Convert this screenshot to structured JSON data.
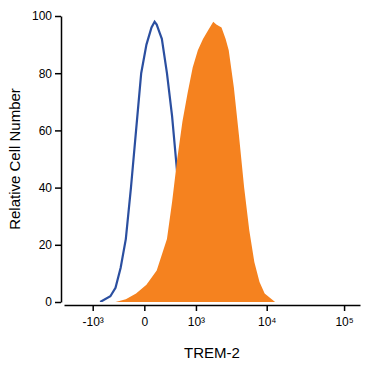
{
  "chart_data": {
    "type": "line",
    "x_label": "TREM-2",
    "y_label": "Relative Cell Number",
    "log": "x",
    "xlim": [
      -2700,
      160000
    ],
    "xticks": [
      {
        "value": -1000,
        "label": "-10³"
      },
      0,
      {
        "value": 1000,
        "label": "10³"
      },
      {
        "value": 10000,
        "label": "10⁴"
      },
      {
        "value": 100000,
        "label": "10⁵"
      }
    ],
    "ylim": [
      0,
      100
    ],
    "yticks": [
      0,
      20,
      40,
      60,
      80,
      100
    ],
    "grid": false,
    "series": [
      {
        "type": "line",
        "color": "#2b4fa0",
        "x": [
          -748,
          -481,
          -374,
          -282,
          -203,
          -135,
          -77,
          -27,
          18,
          66,
          99,
          123,
          161,
          189,
          265,
          354,
          458,
          579,
          720,
          883,
          1074,
          1553
        ],
        "values": [
          0,
          2,
          5,
          12,
          22,
          40,
          60,
          80,
          90,
          96,
          98,
          97,
          94,
          92,
          80,
          65,
          45,
          28,
          14,
          6,
          2,
          0
        ]
      },
      {
        "type": "area",
        "color": "#f5821f",
        "x": [
          -374,
          -203,
          -77,
          18,
          123,
          265,
          354,
          458,
          579,
          720,
          883,
          1074,
          1295,
          1553,
          1851,
          2053,
          2437,
          2788,
          3080,
          3629,
          4270,
          5010,
          5880,
          6860,
          8040,
          9400,
          12880
        ],
        "values": [
          0,
          1,
          3,
          6,
          11,
          22,
          35,
          50,
          63,
          73,
          82,
          88,
          92,
          95,
          98,
          97,
          96,
          92,
          88,
          75,
          58,
          40,
          25,
          14,
          7,
          3,
          0
        ]
      }
    ]
  }
}
